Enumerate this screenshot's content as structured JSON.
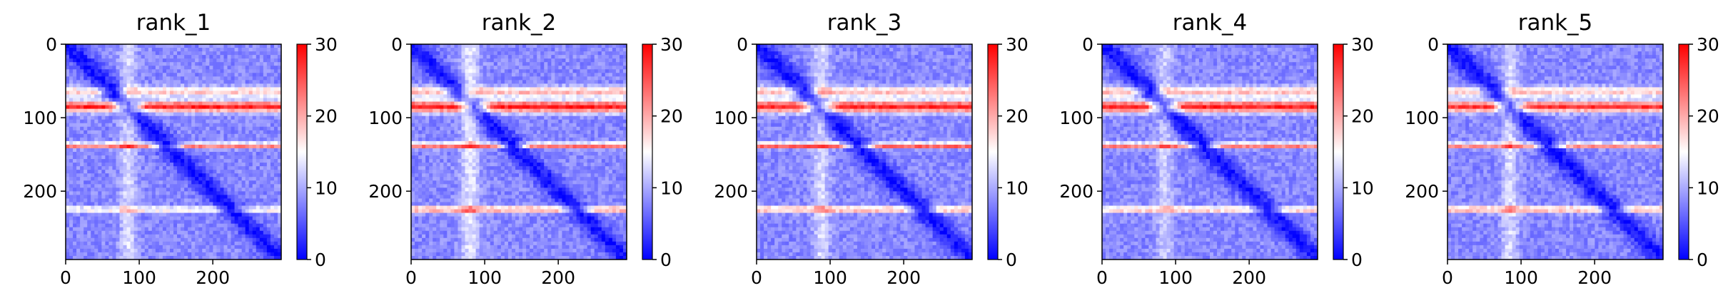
{
  "chart_data": [
    {
      "type": "heatmap",
      "title": "rank_1",
      "x_ticks": [
        "0",
        "100",
        "200"
      ],
      "y_ticks": [
        "0",
        "100",
        "200"
      ],
      "xlim": [
        0,
        293
      ],
      "ylim": [
        293,
        0
      ],
      "colorbar": {
        "min": 0,
        "max": 30,
        "ticks": [
          "0",
          "10",
          "20",
          "30"
        ],
        "colormap": "bwr"
      },
      "bands": [
        {
          "row": 85,
          "width": 10,
          "value": 28
        },
        {
          "row": 138,
          "width": 5,
          "value": 24
        },
        {
          "row": 65,
          "width": 10,
          "value": 18
        },
        {
          "row": 225,
          "width": 5,
          "value": 18
        }
      ],
      "column_bands": [
        {
          "col": 85,
          "width": 16,
          "value": 14
        }
      ],
      "diagonal_value": 1,
      "background_value": 8
    },
    {
      "type": "heatmap",
      "title": "rank_2",
      "x_ticks": [
        "0",
        "100",
        "200"
      ],
      "y_ticks": [
        "0",
        "100",
        "200"
      ],
      "xlim": [
        0,
        293
      ],
      "ylim": [
        293,
        0
      ],
      "colorbar": {
        "min": 0,
        "max": 30,
        "ticks": [
          "0",
          "10",
          "20",
          "30"
        ],
        "colormap": "bwr"
      },
      "bands": [
        {
          "row": 85,
          "width": 11,
          "value": 28
        },
        {
          "row": 138,
          "width": 5,
          "value": 25
        },
        {
          "row": 65,
          "width": 10,
          "value": 19
        },
        {
          "row": 225,
          "width": 6,
          "value": 22
        }
      ],
      "column_bands": [
        {
          "col": 80,
          "width": 18,
          "value": 15
        }
      ],
      "diagonal_value": 1,
      "background_value": 8
    },
    {
      "type": "heatmap",
      "title": "rank_3",
      "x_ticks": [
        "0",
        "100",
        "200"
      ],
      "y_ticks": [
        "0",
        "100",
        "200"
      ],
      "xlim": [
        0,
        293
      ],
      "ylim": [
        293,
        0
      ],
      "colorbar": {
        "min": 0,
        "max": 30,
        "ticks": [
          "0",
          "10",
          "20",
          "30"
        ],
        "colormap": "bwr"
      },
      "bands": [
        {
          "row": 85,
          "width": 11,
          "value": 28
        },
        {
          "row": 138,
          "width": 5,
          "value": 26
        },
        {
          "row": 65,
          "width": 10,
          "value": 19
        },
        {
          "row": 225,
          "width": 6,
          "value": 21
        }
      ],
      "column_bands": [
        {
          "col": 88,
          "width": 16,
          "value": 14
        }
      ],
      "diagonal_value": 1,
      "background_value": 8
    },
    {
      "type": "heatmap",
      "title": "rank_4",
      "x_ticks": [
        "0",
        "100",
        "200"
      ],
      "y_ticks": [
        "0",
        "100",
        "200"
      ],
      "xlim": [
        0,
        293
      ],
      "ylim": [
        293,
        0
      ],
      "colorbar": {
        "min": 0,
        "max": 30,
        "ticks": [
          "0",
          "10",
          "20",
          "30"
        ],
        "colormap": "bwr"
      },
      "bands": [
        {
          "row": 85,
          "width": 11,
          "value": 28
        },
        {
          "row": 138,
          "width": 5,
          "value": 24
        },
        {
          "row": 65,
          "width": 10,
          "value": 19
        },
        {
          "row": 225,
          "width": 5,
          "value": 21
        }
      ],
      "column_bands": [
        {
          "col": 85,
          "width": 16,
          "value": 13
        }
      ],
      "diagonal_value": 1,
      "background_value": 8
    },
    {
      "type": "heatmap",
      "title": "rank_5",
      "x_ticks": [
        "0",
        "100",
        "200"
      ],
      "y_ticks": [
        "0",
        "100",
        "200"
      ],
      "xlim": [
        0,
        293
      ],
      "ylim": [
        293,
        0
      ],
      "colorbar": {
        "min": 0,
        "max": 30,
        "ticks": [
          "0",
          "10",
          "20",
          "30"
        ],
        "colormap": "bwr"
      },
      "bands": [
        {
          "row": 85,
          "width": 10,
          "value": 27
        },
        {
          "row": 138,
          "width": 5,
          "value": 23
        },
        {
          "row": 65,
          "width": 10,
          "value": 18
        },
        {
          "row": 225,
          "width": 6,
          "value": 21
        }
      ],
      "column_bands": [
        {
          "col": 85,
          "width": 16,
          "value": 14
        }
      ],
      "diagonal_value": 1,
      "background_value": 8
    }
  ]
}
